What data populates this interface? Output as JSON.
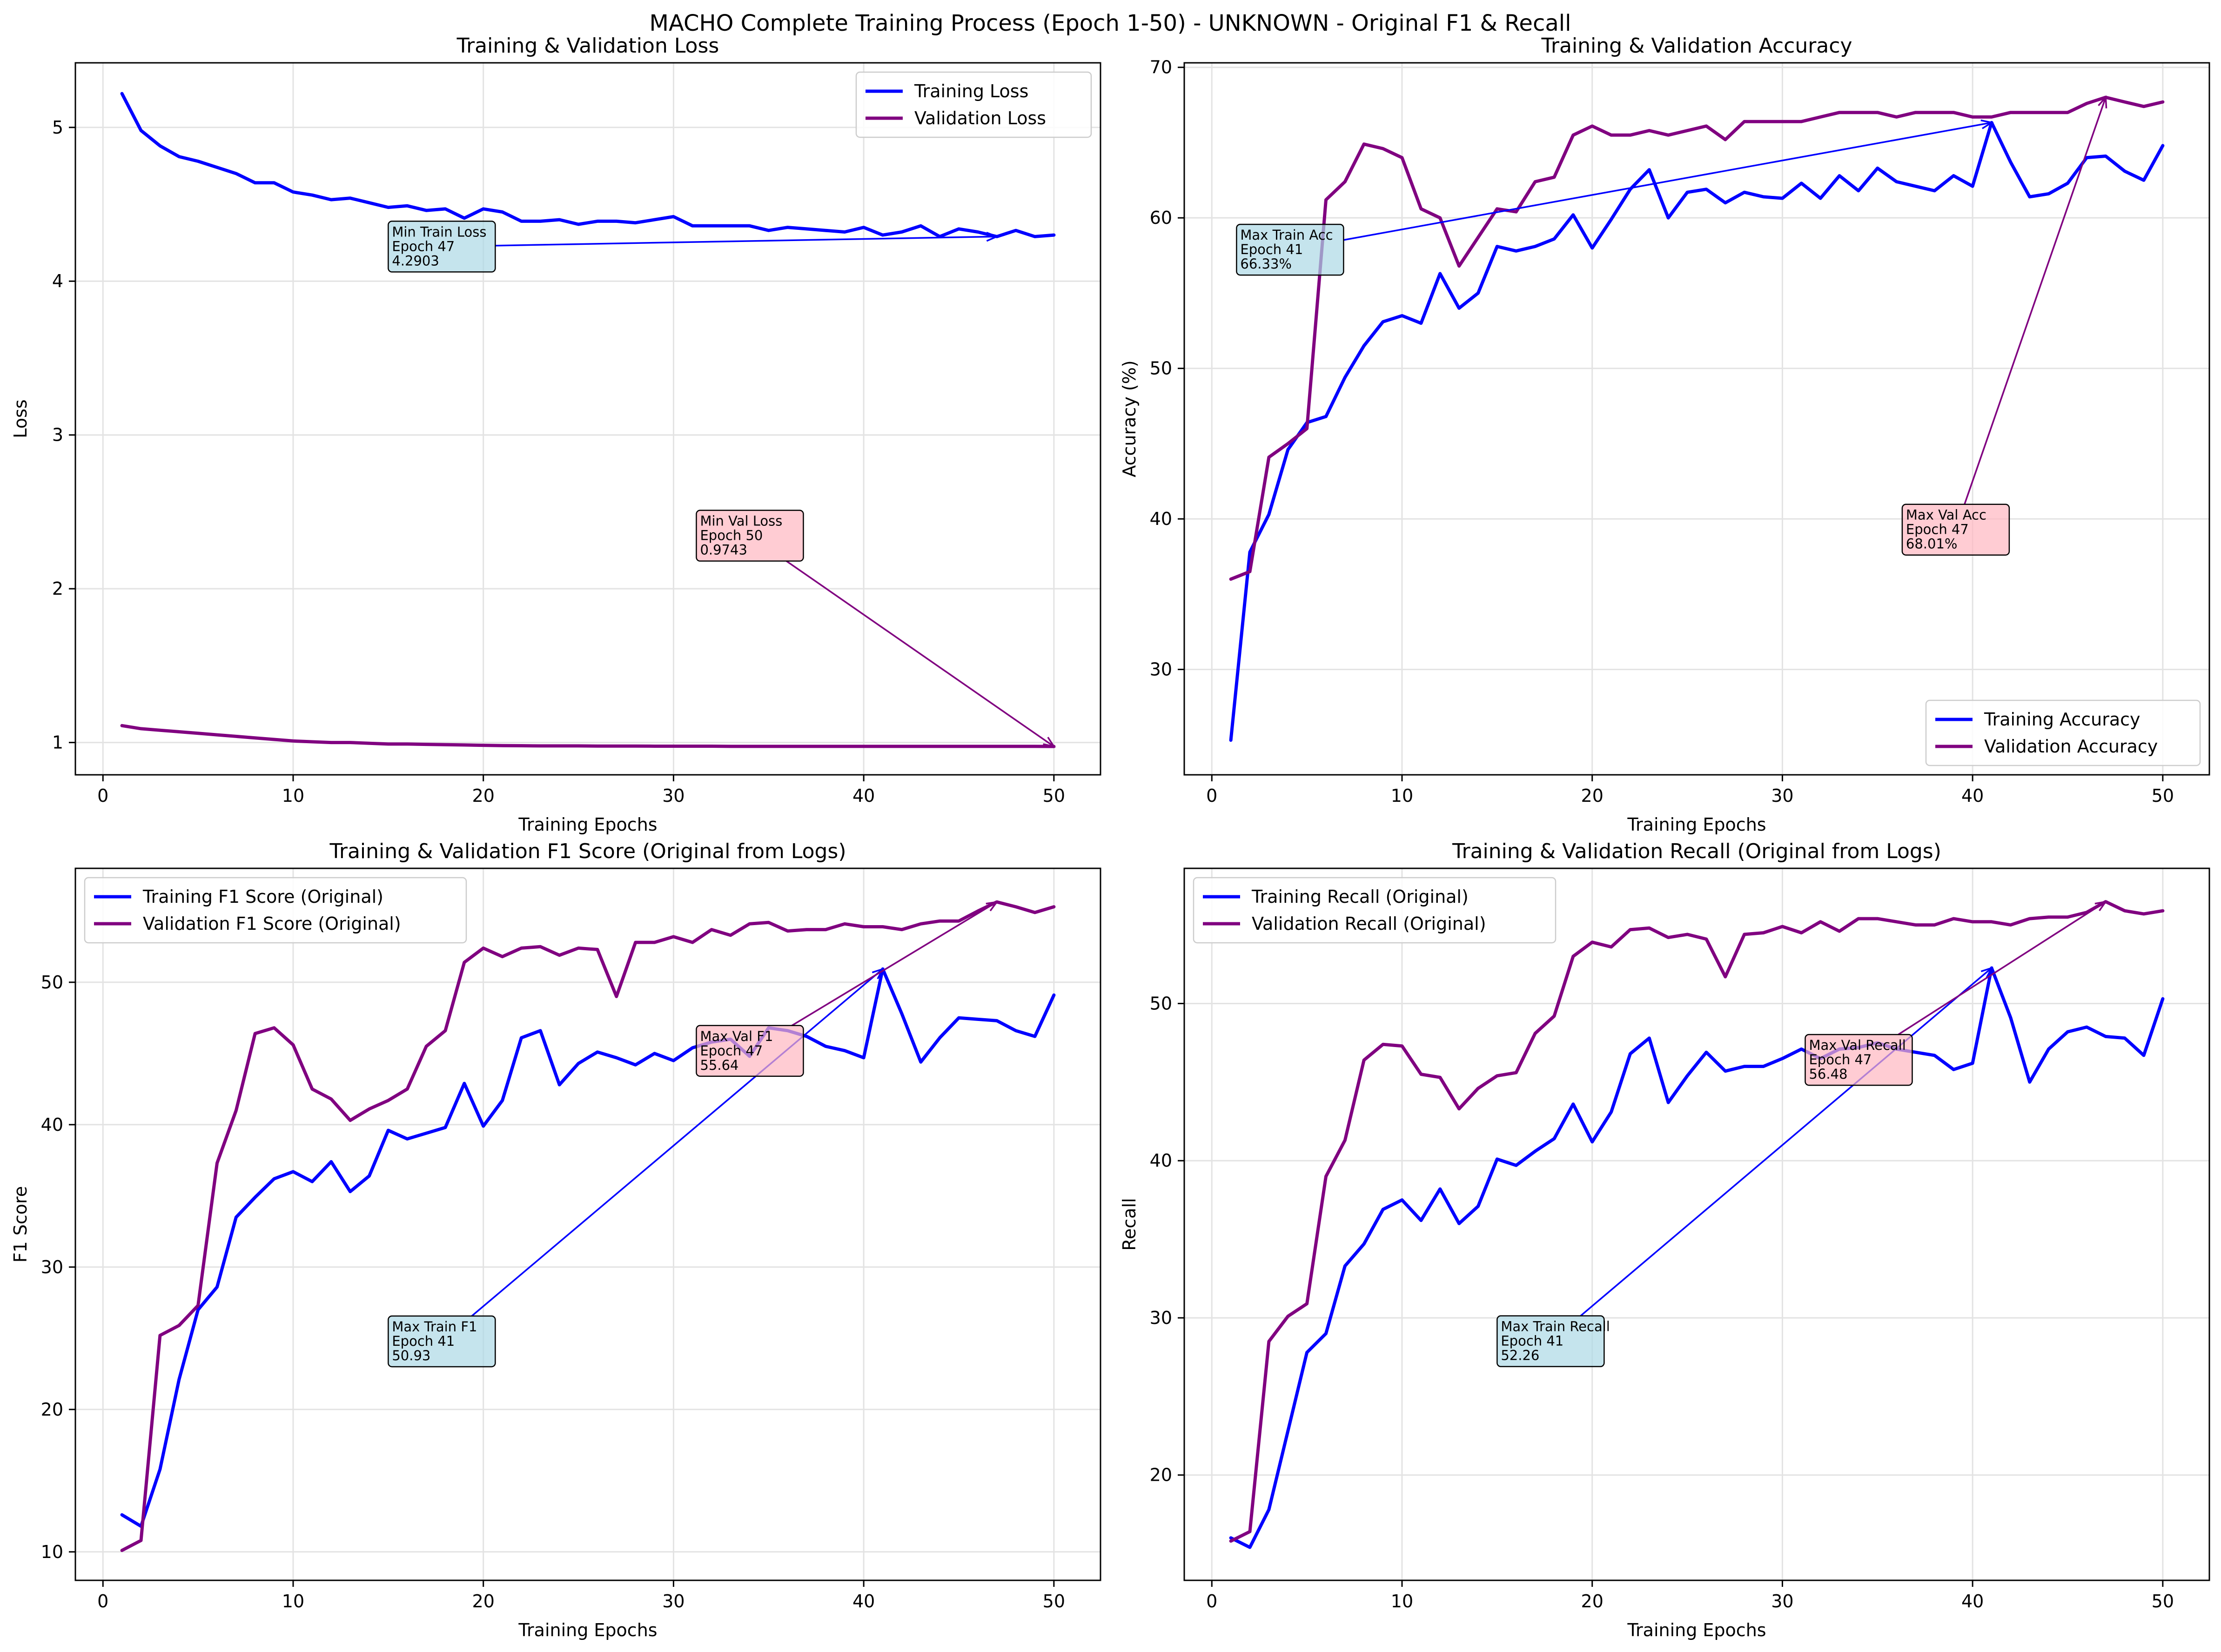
{
  "figure": {
    "title": "MACHO Complete Training Process (Epoch 1-50) - UNKNOWN - Original F1 & Recall"
  },
  "chart_data": [
    {
      "type": "line",
      "title": "Training & Validation Loss",
      "xlabel": "Training Epochs",
      "ylabel": "Loss",
      "xlim": [
        -1.45,
        52.45
      ],
      "ylim": [
        0.79,
        5.42
      ],
      "xticks": [
        0,
        10,
        20,
        30,
        40,
        50
      ],
      "yticks": [
        1,
        2,
        3,
        4,
        5
      ],
      "grid": true,
      "legend_position": "top-right",
      "x": [
        1,
        2,
        3,
        4,
        5,
        6,
        7,
        8,
        9,
        10,
        11,
        12,
        13,
        14,
        15,
        16,
        17,
        18,
        19,
        20,
        21,
        22,
        23,
        24,
        25,
        26,
        27,
        28,
        29,
        30,
        31,
        32,
        33,
        34,
        35,
        36,
        37,
        38,
        39,
        40,
        41,
        42,
        43,
        44,
        45,
        46,
        47,
        48,
        49,
        50
      ],
      "series": [
        {
          "name": "Training Loss",
          "color": "#0000ff",
          "values": [
            5.22,
            4.98,
            4.88,
            4.81,
            4.78,
            4.74,
            4.7,
            4.64,
            4.64,
            4.58,
            4.56,
            4.53,
            4.54,
            4.51,
            4.48,
            4.49,
            4.46,
            4.47,
            4.41,
            4.47,
            4.45,
            4.39,
            4.39,
            4.4,
            4.37,
            4.39,
            4.39,
            4.38,
            4.4,
            4.42,
            4.36,
            4.36,
            4.36,
            4.36,
            4.33,
            4.35,
            4.34,
            4.33,
            4.32,
            4.35,
            4.3,
            4.32,
            4.36,
            4.29,
            4.34,
            4.32,
            4.29,
            4.33,
            4.29,
            4.3
          ]
        },
        {
          "name": "Validation Loss",
          "color": "#800080",
          "values": [
            1.11,
            1.09,
            1.08,
            1.07,
            1.06,
            1.05,
            1.04,
            1.03,
            1.02,
            1.01,
            1.005,
            1.0,
            1.0,
            0.995,
            0.99,
            0.99,
            0.988,
            0.986,
            0.984,
            0.982,
            0.98,
            0.979,
            0.978,
            0.978,
            0.978,
            0.977,
            0.977,
            0.977,
            0.976,
            0.976,
            0.976,
            0.976,
            0.975,
            0.975,
            0.975,
            0.975,
            0.975,
            0.975,
            0.975,
            0.975,
            0.975,
            0.975,
            0.975,
            0.975,
            0.975,
            0.975,
            0.975,
            0.975,
            0.975,
            0.9743
          ]
        }
      ],
      "annotations": [
        {
          "lines": [
            "Min Train Loss",
            "Epoch 47",
            "4.2903"
          ],
          "point": [
            47,
            4.2903
          ],
          "box_at": [
            15,
            4.06
          ],
          "style": "blue"
        },
        {
          "lines": [
            "Min Val Loss",
            "Epoch 50",
            "0.9743"
          ],
          "point": [
            50,
            0.9743
          ],
          "box_at": [
            31.2,
            2.18
          ],
          "style": "pink"
        }
      ]
    },
    {
      "type": "line",
      "title": "Training & Validation Accuracy",
      "xlabel": "Training Epochs",
      "ylabel": "Accuracy (%)",
      "xlim": [
        -1.45,
        52.45
      ],
      "ylim": [
        23,
        70.3
      ],
      "xticks": [
        0,
        10,
        20,
        30,
        40,
        50
      ],
      "yticks": [
        30,
        40,
        50,
        60,
        70
      ],
      "grid": true,
      "legend_position": "bottom-right",
      "x": [
        1,
        2,
        3,
        4,
        5,
        6,
        7,
        8,
        9,
        10,
        11,
        12,
        13,
        14,
        15,
        16,
        17,
        18,
        19,
        20,
        21,
        22,
        23,
        24,
        25,
        26,
        27,
        28,
        29,
        30,
        31,
        32,
        33,
        34,
        35,
        36,
        37,
        38,
        39,
        40,
        41,
        42,
        43,
        44,
        45,
        46,
        47,
        48,
        49,
        50
      ],
      "series": [
        {
          "name": "Training Accuracy",
          "color": "#0000ff",
          "values": [
            25.3,
            37.8,
            40.3,
            44.6,
            46.4,
            46.8,
            49.4,
            51.5,
            53.1,
            53.5,
            53.0,
            56.3,
            54.0,
            55.0,
            58.1,
            57.8,
            58.1,
            58.6,
            60.2,
            58.0,
            59.9,
            61.9,
            63.2,
            60.0,
            61.7,
            61.9,
            61.0,
            61.7,
            61.4,
            61.3,
            62.3,
            61.3,
            62.8,
            61.8,
            63.3,
            62.4,
            62.1,
            61.8,
            62.8,
            62.1,
            66.33,
            63.7,
            61.4,
            61.6,
            62.3,
            64.0,
            64.1,
            63.1,
            62.5,
            64.8
          ]
        },
        {
          "name": "Validation Accuracy",
          "color": "#800080",
          "values": [
            36.0,
            36.5,
            44.1,
            45.0,
            46.0,
            61.2,
            62.4,
            64.9,
            64.6,
            64.0,
            60.6,
            60.0,
            56.8,
            58.7,
            60.6,
            60.4,
            62.4,
            62.7,
            65.5,
            66.1,
            65.5,
            65.5,
            65.8,
            65.5,
            65.8,
            66.1,
            65.2,
            66.4,
            66.4,
            66.4,
            66.4,
            66.7,
            67.0,
            67.0,
            67.0,
            66.7,
            67.0,
            67.0,
            67.0,
            66.7,
            66.7,
            67.0,
            67.0,
            67.0,
            67.0,
            67.6,
            68.01,
            67.7,
            67.4,
            67.7
          ]
        }
      ],
      "annotations": [
        {
          "lines": [
            "Max Train Acc",
            "Epoch 41",
            "66.33%"
          ],
          "point": [
            41,
            66.33
          ],
          "box_at": [
            1.3,
            56.2
          ],
          "style": "blue"
        },
        {
          "lines": [
            "Max Val Acc",
            "Epoch 47",
            "68.01%"
          ],
          "point": [
            47,
            68.01
          ],
          "box_at": [
            36.3,
            37.6
          ],
          "style": "pink"
        }
      ]
    },
    {
      "type": "line",
      "title": "Training & Validation F1 Score (Original from Logs)",
      "xlabel": "Training Epochs",
      "ylabel": "F1 Score",
      "xlim": [
        -1.45,
        52.45
      ],
      "ylim": [
        8.0,
        58.0
      ],
      "xticks": [
        0,
        10,
        20,
        30,
        40,
        50
      ],
      "yticks": [
        10,
        20,
        30,
        40,
        50
      ],
      "grid": true,
      "legend_position": "top-left",
      "x": [
        1,
        2,
        3,
        4,
        5,
        6,
        7,
        8,
        9,
        10,
        11,
        12,
        13,
        14,
        15,
        16,
        17,
        18,
        19,
        20,
        21,
        22,
        23,
        24,
        25,
        26,
        27,
        28,
        29,
        30,
        31,
        32,
        33,
        34,
        35,
        36,
        37,
        38,
        39,
        40,
        41,
        42,
        43,
        44,
        45,
        46,
        47,
        48,
        49,
        50
      ],
      "series": [
        {
          "name": "Training F1 Score (Original)",
          "color": "#0000ff",
          "values": [
            12.6,
            11.8,
            15.8,
            22.1,
            27.0,
            28.6,
            33.5,
            34.9,
            36.2,
            36.7,
            36.0,
            37.4,
            35.3,
            36.4,
            39.6,
            39.0,
            39.4,
            39.8,
            42.9,
            39.9,
            41.7,
            46.1,
            46.6,
            42.8,
            44.3,
            45.1,
            44.7,
            44.2,
            45.0,
            44.5,
            45.4,
            45.8,
            46.0,
            44.8,
            46.8,
            46.6,
            46.2,
            45.5,
            45.2,
            44.7,
            50.93,
            47.8,
            44.4,
            46.1,
            47.5,
            47.4,
            47.3,
            46.6,
            46.2,
            49.1
          ]
        },
        {
          "name": "Validation F1 Score (Original)",
          "color": "#800080",
          "values": [
            10.1,
            10.8,
            25.2,
            25.9,
            27.3,
            37.3,
            41.0,
            46.4,
            46.8,
            45.6,
            42.5,
            41.8,
            40.3,
            41.1,
            41.7,
            42.5,
            45.5,
            46.6,
            51.4,
            52.4,
            51.8,
            52.4,
            52.5,
            51.9,
            52.4,
            52.3,
            49.0,
            52.8,
            52.8,
            53.2,
            52.8,
            53.7,
            53.3,
            54.1,
            54.2,
            53.6,
            53.7,
            53.7,
            54.1,
            53.9,
            53.9,
            53.7,
            54.1,
            54.3,
            54.3,
            55.0,
            55.64,
            55.3,
            54.9,
            55.3
          ]
        }
      ],
      "annotations": [
        {
          "lines": [
            "Max Train F1",
            "Epoch 41",
            "50.93"
          ],
          "point": [
            41,
            50.93
          ],
          "box_at": [
            15,
            23.0
          ],
          "style": "blue"
        },
        {
          "lines": [
            "Max Val F1",
            "Epoch 47",
            "55.64"
          ],
          "point": [
            47,
            55.64
          ],
          "box_at": [
            31.2,
            43.4
          ],
          "style": "pink"
        }
      ]
    },
    {
      "type": "line",
      "title": "Training & Validation Recall (Original from Logs)",
      "xlabel": "Training Epochs",
      "ylabel": "Recall",
      "xlim": [
        -1.45,
        52.45
      ],
      "ylim": [
        13.3,
        58.6
      ],
      "xticks": [
        0,
        10,
        20,
        30,
        40,
        50
      ],
      "yticks": [
        20,
        30,
        40,
        50
      ],
      "grid": true,
      "legend_position": "top-left",
      "x": [
        1,
        2,
        3,
        4,
        5,
        6,
        7,
        8,
        9,
        10,
        11,
        12,
        13,
        14,
        15,
        16,
        17,
        18,
        19,
        20,
        21,
        22,
        23,
        24,
        25,
        26,
        27,
        28,
        29,
        30,
        31,
        32,
        33,
        34,
        35,
        36,
        37,
        38,
        39,
        40,
        41,
        42,
        43,
        44,
        45,
        46,
        47,
        48,
        49,
        50
      ],
      "series": [
        {
          "name": "Training Recall (Original)",
          "color": "#0000ff",
          "values": [
            16.0,
            15.4,
            17.8,
            22.8,
            27.8,
            29.0,
            33.3,
            34.7,
            36.9,
            37.5,
            36.2,
            38.2,
            36.0,
            37.1,
            40.1,
            39.7,
            40.6,
            41.4,
            43.6,
            41.2,
            43.1,
            46.8,
            47.8,
            43.7,
            45.4,
            46.9,
            45.7,
            46.0,
            46.0,
            46.5,
            47.1,
            46.5,
            47.1,
            47.2,
            47.5,
            47.1,
            46.9,
            46.7,
            45.8,
            46.2,
            52.26,
            49.1,
            45.0,
            47.1,
            48.2,
            48.5,
            47.9,
            47.8,
            46.7,
            50.3
          ]
        },
        {
          "name": "Validation Recall (Original)",
          "color": "#800080",
          "values": [
            15.8,
            16.4,
            28.5,
            30.1,
            30.9,
            39.0,
            41.3,
            46.4,
            47.4,
            47.3,
            45.5,
            45.3,
            43.3,
            44.6,
            45.4,
            45.6,
            48.1,
            49.2,
            53.0,
            53.9,
            53.6,
            54.7,
            54.8,
            54.2,
            54.4,
            54.1,
            51.7,
            54.4,
            54.5,
            54.9,
            54.5,
            55.2,
            54.6,
            55.4,
            55.4,
            55.2,
            55.0,
            55.0,
            55.4,
            55.2,
            55.2,
            55.0,
            55.4,
            55.5,
            55.5,
            55.8,
            56.48,
            55.9,
            55.7,
            55.9
          ]
        }
      ],
      "annotations": [
        {
          "lines": [
            "Max Train Recall",
            "Epoch 41",
            "52.26"
          ],
          "point": [
            41,
            52.26
          ],
          "box_at": [
            15,
            26.9
          ],
          "style": "blue"
        },
        {
          "lines": [
            "Max Val Recall",
            "Epoch 47",
            "56.48"
          ],
          "point": [
            47,
            56.48
          ],
          "box_at": [
            31.2,
            44.8
          ],
          "style": "pink"
        }
      ]
    }
  ]
}
